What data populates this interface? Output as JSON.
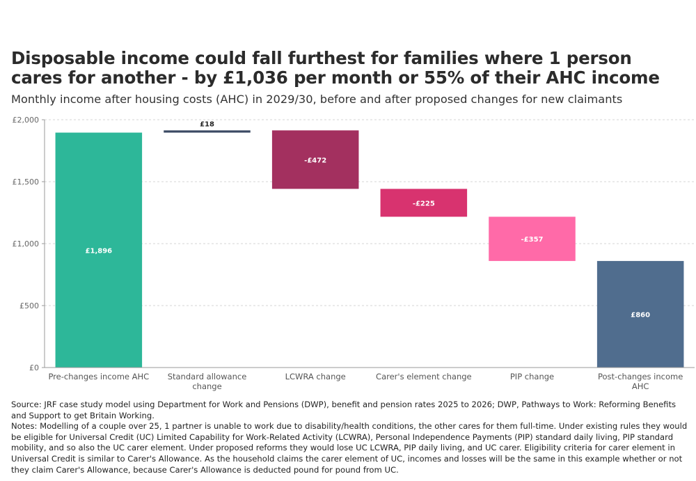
{
  "title": "Disposable income could fall furthest for families where 1 person cares for another - by £1,036 per month or 55% of their AHC income",
  "subtitle": "Monthly income after housing costs (AHC) in 2029/30, before and after proposed changes for new claimants",
  "chart_data": {
    "type": "bar",
    "subtype": "waterfall",
    "categories": [
      "Pre-changes income AHC",
      "Standard allowance change",
      "LCWRA change",
      "Carer's element change",
      "PIP change",
      "Post-changes income AHC"
    ],
    "category_lines": [
      [
        "Pre-changes income AHC"
      ],
      [
        "Standard allowance",
        "change"
      ],
      [
        "LCWRA change"
      ],
      [
        "Carer's element change"
      ],
      [
        "PIP change"
      ],
      [
        "Post-changes income",
        "AHC"
      ]
    ],
    "values": [
      1896,
      18,
      -472,
      -225,
      -357,
      860
    ],
    "bar_kind": [
      "total",
      "change",
      "change",
      "change",
      "change",
      "total"
    ],
    "data_labels": [
      "£1,896",
      "£18",
      "-£472",
      "-£225",
      "-£357",
      "£860"
    ],
    "colors": [
      "#2db799",
      "#3b4a63",
      "#a3305f",
      "#d8336f",
      "#ff6aa8",
      "#506d8e"
    ],
    "label_colors": [
      "#ffffff",
      "#222222",
      "#ffffff",
      "#ffffff",
      "#ffffff",
      "#ffffff"
    ],
    "ylim": [
      0,
      2000
    ],
    "yticks": [
      0,
      500,
      1000,
      1500,
      2000
    ],
    "ytick_labels": [
      "£0",
      "£500",
      "£1,000",
      "£1,500",
      "£2,000"
    ],
    "grid": true
  },
  "footer": {
    "source": "Source: JRF case study model using Department for Work and Pensions (DWP), benefit and pension rates 2025 to 2026; DWP, Pathways to Work: Reforming Benefits and Support to get Britain Working.",
    "notes": "Notes: Modelling of a couple over 25, 1 partner is unable to work due to disability/health conditions, the other cares for them full-time. Under existing rules they would be eligible for Universal Credit (UC) Limited Capability for Work-Related Activity (LCWRA), Personal Independence Payments (PIP) standard daily living, PIP standard mobility, and so also the UC carer element. Under proposed reforms they would lose UC LCWRA, PIP daily living, and UC carer. Eligibility criteria for carer element in Universal Credit is similar to Carer's Allowance. As the household claims the carer element of UC, incomes and losses will be the same in this example whether or not they claim Carer's Allowance, because Carer's Allowance is deducted pound for pound from UC."
  }
}
